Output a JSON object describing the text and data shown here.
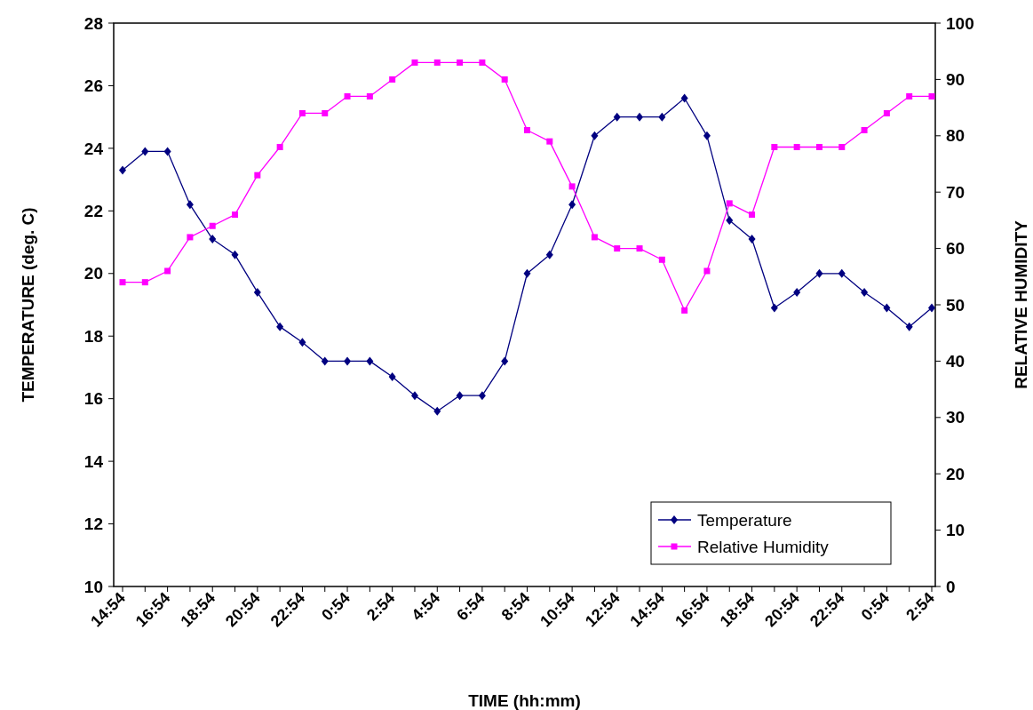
{
  "chart_data": {
    "type": "line",
    "xlabel": "TIME (hh:mm)",
    "ylabel": "TEMPERATURE (deg. C)",
    "y2label": "RELATIVE HUMIDITY",
    "categories": [
      "14:54",
      null,
      "16:54",
      null,
      "18:54",
      null,
      "20:54",
      null,
      "22:54",
      null,
      "0:54",
      null,
      "2:54",
      null,
      "4:54",
      null,
      "6:54",
      null,
      "8:54",
      null,
      "10:54",
      null,
      "12:54",
      null,
      "14:54",
      null,
      "16:54",
      null,
      "18:54",
      null,
      "20:54",
      null,
      "22:54",
      null,
      "0:54",
      null,
      "2:54"
    ],
    "series": [
      {
        "name": "Temperature",
        "color": "#000080",
        "marker": "diamond",
        "values": [
          23.3,
          23.9,
          23.9,
          22.2,
          21.1,
          20.6,
          19.4,
          18.3,
          17.8,
          17.2,
          17.2,
          17.2,
          16.7,
          16.1,
          15.6,
          16.1,
          16.1,
          17.2,
          20.0,
          20.6,
          22.2,
          24.4,
          25.0,
          25.0,
          25.0,
          25.6,
          24.4,
          21.7,
          21.1,
          18.9,
          19.4,
          20.0,
          20.0,
          19.4,
          18.9,
          18.3,
          18.9
        ]
      },
      {
        "name": "Relative Humidity",
        "color": "#ff00ff",
        "marker": "square",
        "axis": "y2",
        "values": [
          54,
          54,
          56,
          62,
          64,
          66,
          73,
          78,
          84,
          84,
          87,
          87,
          90,
          93,
          93,
          93,
          93,
          90,
          81,
          79,
          71,
          62,
          60,
          60,
          58,
          49,
          56,
          68,
          66,
          78,
          78,
          78,
          78,
          81,
          84,
          87,
          87
        ]
      }
    ],
    "ylim": [
      10,
      28
    ],
    "yticks": [
      10,
      12,
      14,
      16,
      18,
      20,
      22,
      24,
      26,
      28
    ],
    "y2lim": [
      0,
      100
    ],
    "y2ticks": [
      0,
      10,
      20,
      30,
      40,
      50,
      60,
      70,
      80,
      90,
      100
    ],
    "grid": false,
    "legend": "bottom right"
  }
}
